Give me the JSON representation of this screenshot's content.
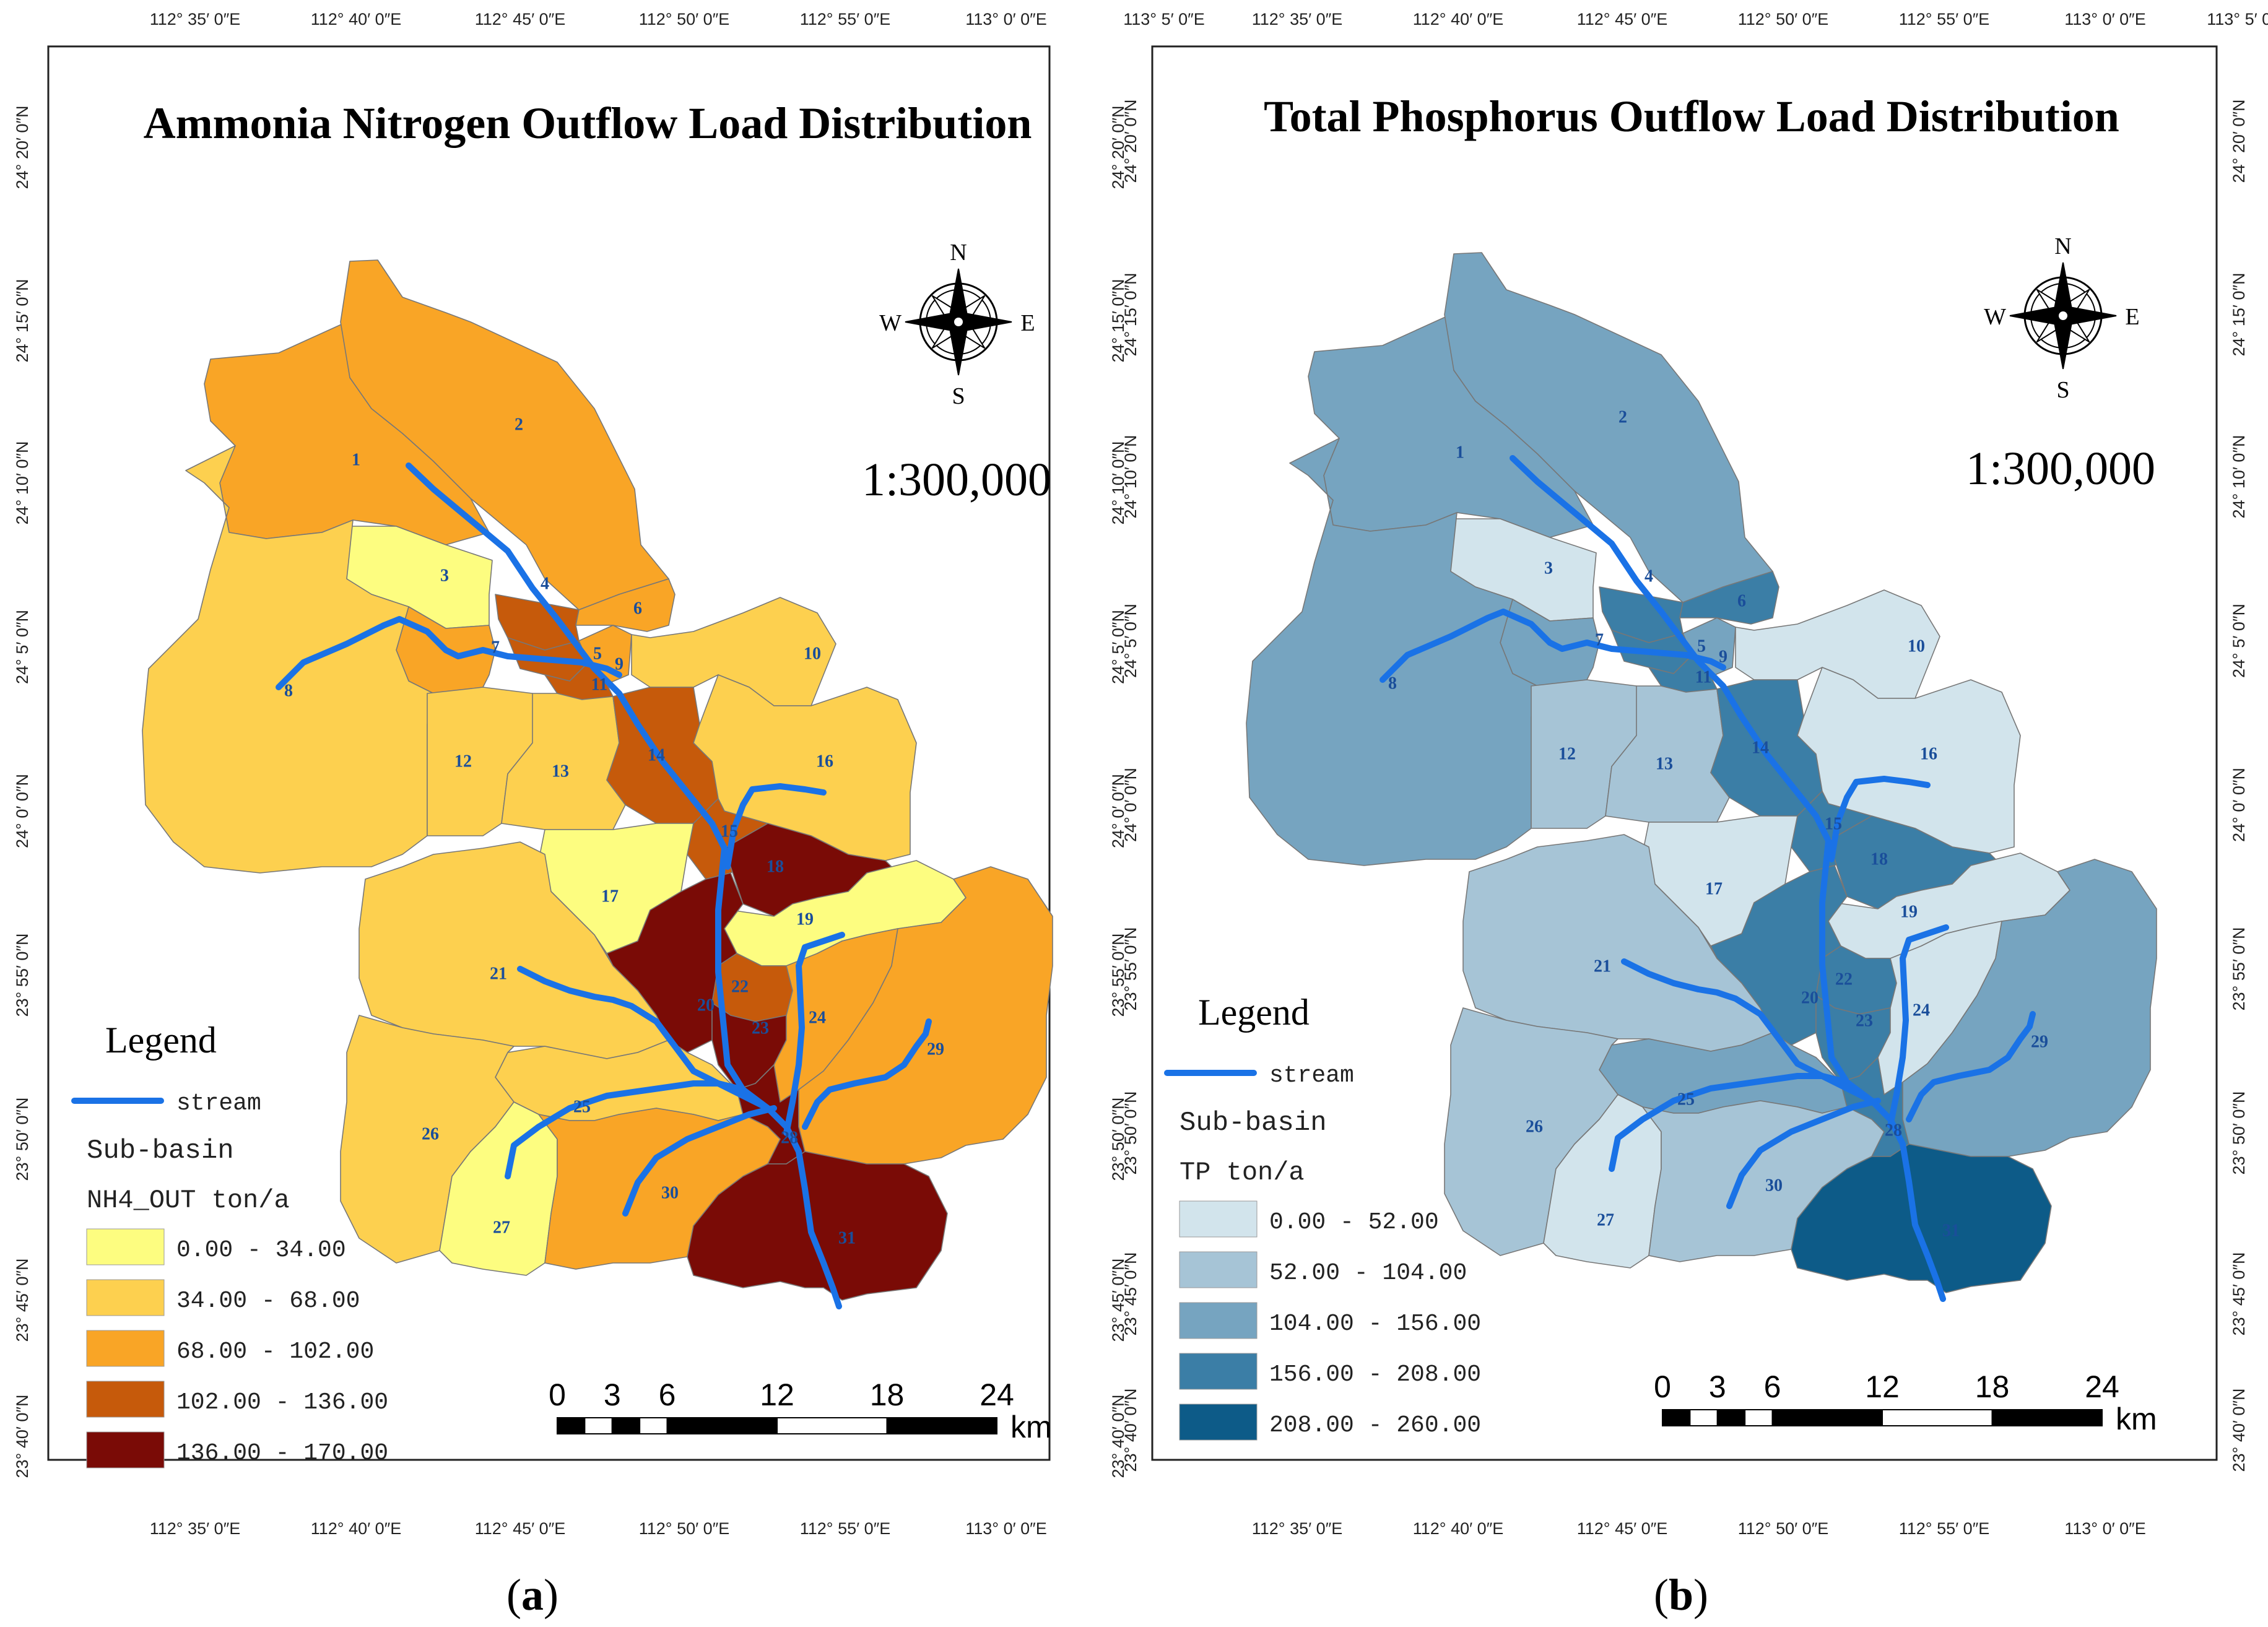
{
  "panels": [
    {
      "id": "a",
      "label": "a",
      "title": "Ammonia Nitrogen Outflow Load Distribution",
      "scale_text": "1:300,000",
      "compass": {
        "n": "N",
        "s": "S",
        "e": "E",
        "w": "W"
      },
      "legend": {
        "title": "Legend",
        "stream_label": "stream",
        "subbasin_label": "Sub-basin",
        "field_label": "NH4_OUT   ton/a",
        "classes": [
          {
            "range": "0.00 - 34.00",
            "color": "#fdfd80"
          },
          {
            "range": "34.00 - 68.00",
            "color": "#fdd04f"
          },
          {
            "range": "68.00 - 102.00",
            "color": "#f9a526"
          },
          {
            "range": "102.00 - 136.00",
            "color": "#c65a0b"
          },
          {
            "range": "136.00 - 170.00",
            "color": "#7a0b06"
          }
        ]
      },
      "subbasin_class": {
        "1": 2,
        "2": 2,
        "3": 0,
        "4": 3,
        "5": 3,
        "6": 2,
        "7": 2,
        "8": 1,
        "9": 2,
        "10": 1,
        "11": 3,
        "12": 1,
        "13": 1,
        "14": 3,
        "15": 3,
        "16": 1,
        "17": 0,
        "18": 4,
        "19": 0,
        "20": 4,
        "21": 1,
        "22": 3,
        "23": 4,
        "24": 2,
        "25": 1,
        "26": 1,
        "27": 0,
        "28": 4,
        "29": 2,
        "30": 2,
        "31": 4
      }
    },
    {
      "id": "b",
      "label": "b",
      "title": "Total Phosphorus Outflow Load Distribution",
      "scale_text": "1:300,000",
      "compass": {
        "n": "N",
        "s": "S",
        "e": "E",
        "w": "W"
      },
      "legend": {
        "title": "Legend",
        "stream_label": "stream",
        "subbasin_label": "Sub-basin",
        "field_label": "TP   ton/a",
        "classes": [
          {
            "range": "0.00 - 52.00",
            "color": "#d2e4ec"
          },
          {
            "range": "52.00 - 104.00",
            "color": "#a6c4d6"
          },
          {
            "range": "104.00 - 156.00",
            "color": "#76a4c0"
          },
          {
            "range": "156.00 - 208.00",
            "color": "#3b7ea6"
          },
          {
            "range": "208.00 - 260.00",
            "color": "#0d5b88"
          }
        ]
      },
      "subbasin_class": {
        "1": 2,
        "2": 2,
        "3": 0,
        "4": 3,
        "5": 3,
        "6": 3,
        "7": 2,
        "8": 2,
        "9": 2,
        "10": 0,
        "11": 3,
        "12": 1,
        "13": 1,
        "14": 3,
        "15": 3,
        "16": 0,
        "17": 0,
        "18": 3,
        "19": 0,
        "20": 3,
        "21": 1,
        "22": 3,
        "23": 3,
        "24": 0,
        "25": 2,
        "26": 1,
        "27": 0,
        "28": 3,
        "29": 2,
        "30": 1,
        "31": 4
      }
    }
  ],
  "coords": {
    "lon_labels": [
      "112° 35′ 0″E",
      "112° 40′ 0″E",
      "112° 45′ 0″E",
      "112° 50′ 0″E",
      "112° 55′ 0″E",
      "113° 0′ 0″E",
      "113° 5′ 0″E"
    ],
    "lat_labels": [
      "24° 20′ 0″N",
      "24° 15′ 0″N",
      "24° 10′ 0″N",
      "24° 5′ 0″N",
      "24° 0′ 0″N",
      "23° 55′ 0″N",
      "23° 50′ 0″N",
      "23° 45′ 0″N",
      "23° 40′ 0″N"
    ]
  },
  "scalebar": {
    "ticks": [
      "0",
      "3",
      "6",
      "12",
      "18",
      "24"
    ],
    "unit": "km"
  },
  "stream_color": "#1a72e6"
}
